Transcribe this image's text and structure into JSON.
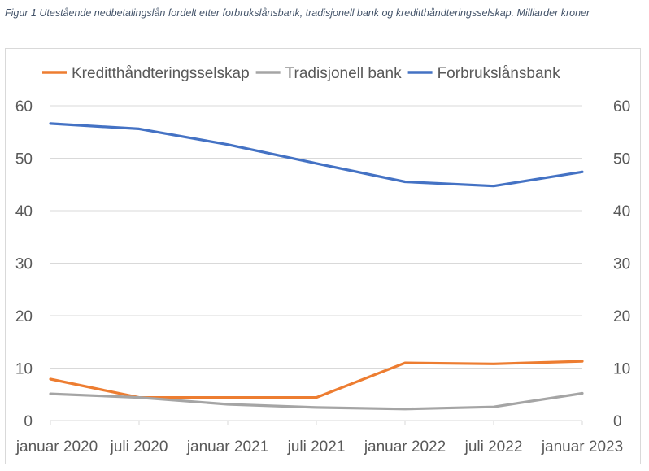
{
  "caption": "Figur 1 Utestående nedbetalingslån fordelt etter forbrukslånsbank, tradisjonell bank og kreditthåndteringsselskap. Milliarder kroner",
  "chart_data": {
    "type": "line",
    "categories": [
      "januar 2020",
      "juli 2020",
      "januar 2021",
      "juli 2021",
      "januar 2022",
      "juli 2022",
      "januar 2023"
    ],
    "series": [
      {
        "name": "Kreditthåndteringsselskap",
        "color": "#ed7d31",
        "values": [
          7.9,
          4.4,
          4.4,
          4.4,
          11.0,
          10.8,
          11.3
        ]
      },
      {
        "name": "Tradisjonell bank",
        "color": "#a5a5a5",
        "values": [
          5.1,
          4.4,
          3.1,
          2.5,
          2.2,
          2.6,
          5.2
        ]
      },
      {
        "name": "Forbrukslånsbank",
        "color": "#4472c4",
        "values": [
          56.6,
          55.6,
          52.6,
          49.0,
          45.5,
          44.7,
          47.4
        ]
      }
    ],
    "yticks": [
      "0",
      "10",
      "20",
      "30",
      "40",
      "50",
      "60"
    ],
    "ylim": [
      0,
      60
    ],
    "grid": true,
    "legend": "top",
    "secondary_axis": true
  }
}
